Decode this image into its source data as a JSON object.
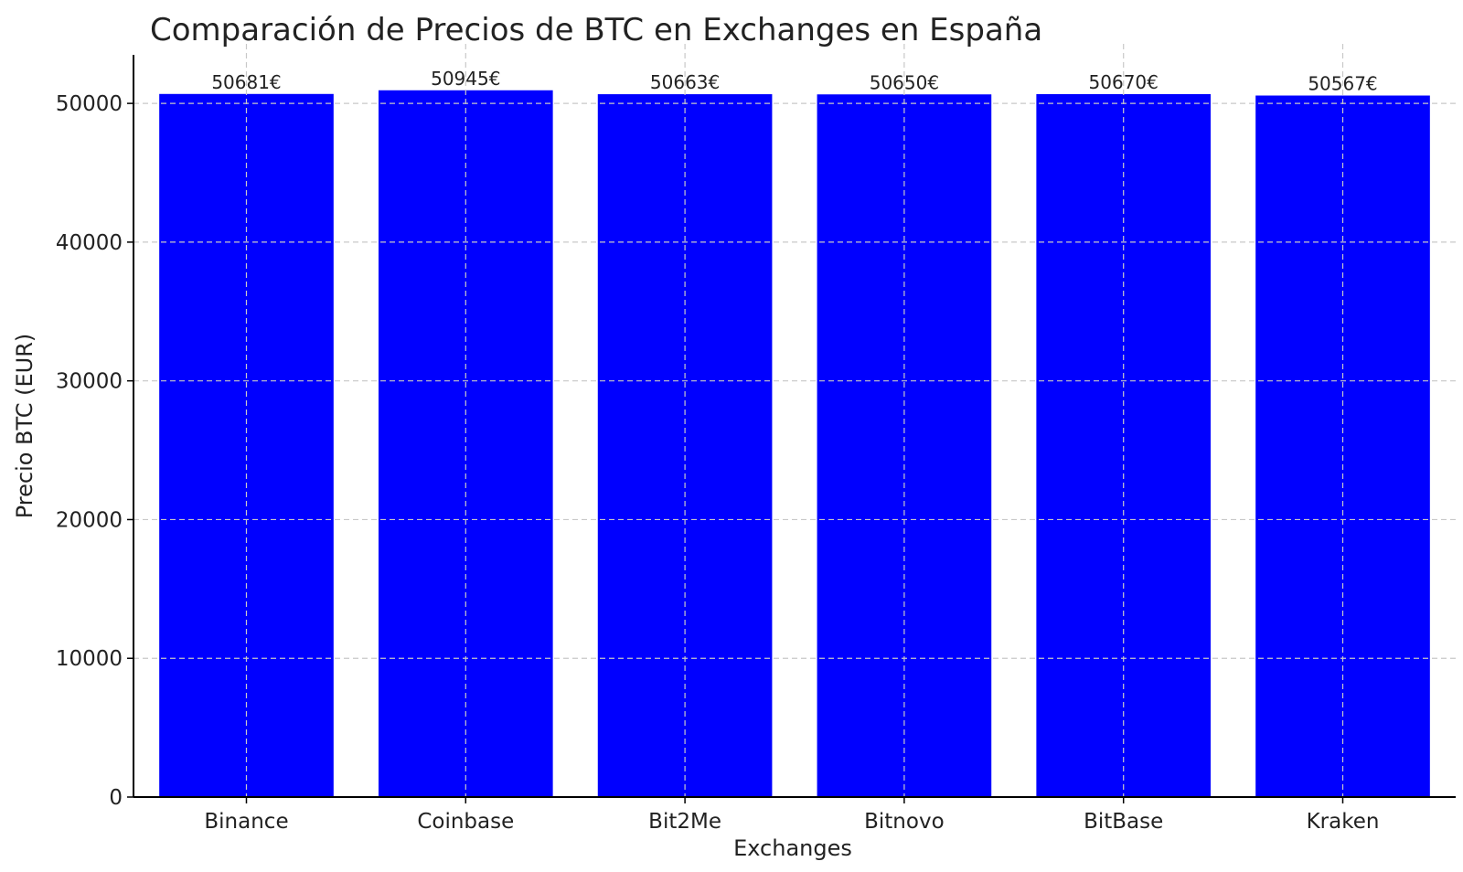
{
  "chart_data": {
    "type": "bar",
    "title": "Comparación de Precios de BTC en Exchanges en España",
    "xlabel": "Exchanges",
    "ylabel": "Precio BTC (EUR)",
    "categories": [
      "Binance",
      "Coinbase",
      "Bit2Me",
      "Bitnovo",
      "BitBase",
      "Kraken"
    ],
    "values": [
      50681,
      50945,
      50663,
      50650,
      50670,
      50567
    ],
    "data_labels": [
      "50681€",
      "50945€",
      "50663€",
      "50650€",
      "50670€",
      "50567€"
    ],
    "ylim": [
      0,
      53500
    ],
    "yticks": [
      0,
      10000,
      20000,
      30000,
      40000,
      50000
    ],
    "grid": true,
    "legend": "none",
    "bar_color": "#0000ff",
    "ylabel_color": "#0000bb"
  }
}
